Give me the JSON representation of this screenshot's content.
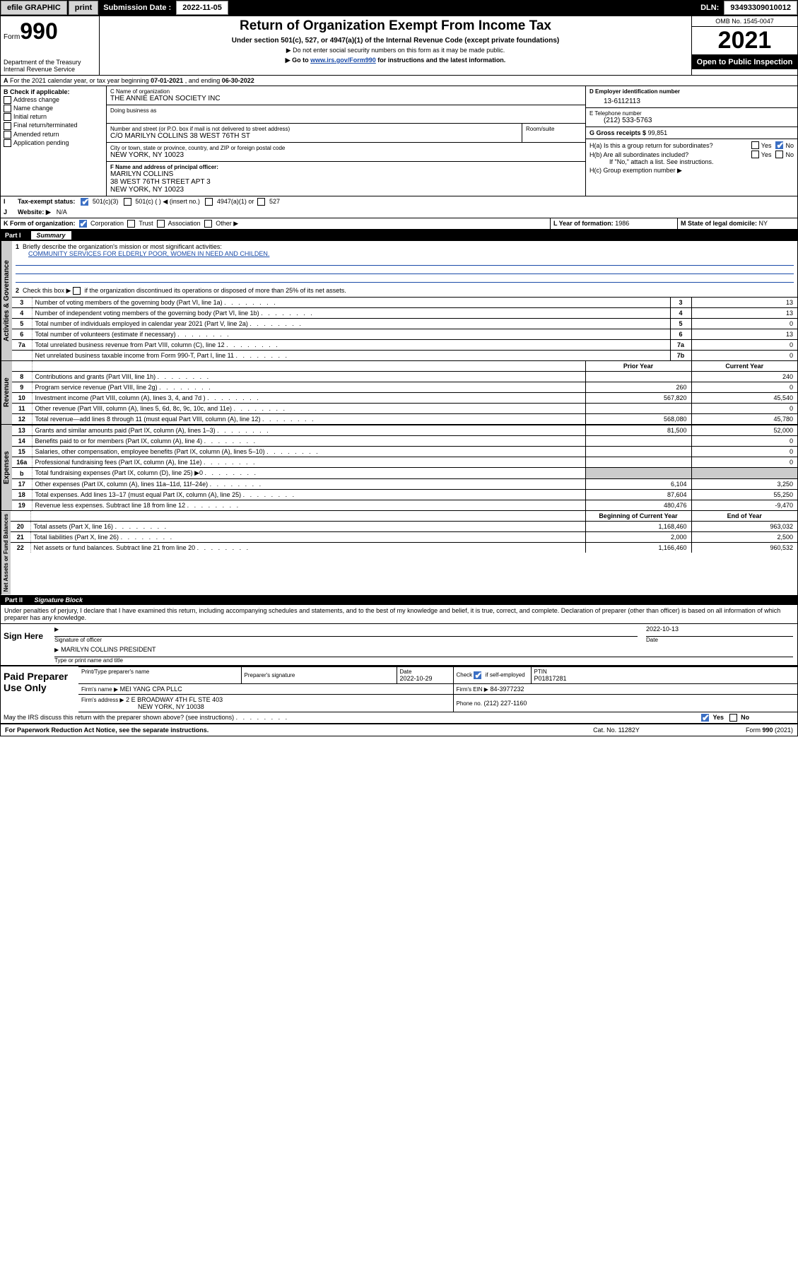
{
  "topbar": {
    "efile": "efile GRAPHIC",
    "print": "print",
    "sub_label": "Submission Date :",
    "sub_date": "2022-11-05",
    "dln_label": "DLN:",
    "dln": "93493309010012"
  },
  "header": {
    "form_word": "Form",
    "form_num": "990",
    "title": "Return of Organization Exempt From Income Tax",
    "sub1": "Under section 501(c), 527, or 4947(a)(1) of the Internal Revenue Code (except private foundations)",
    "sub2": "▶ Do not enter social security numbers on this form as it may be made public.",
    "sub3_pre": "▶ Go to ",
    "sub3_link": "www.irs.gov/Form990",
    "sub3_post": " for instructions and the latest information.",
    "dept": "Department of the Treasury\nInternal Revenue Service",
    "omb": "OMB No. 1545-0047",
    "year": "2021",
    "open": "Open to Public Inspection"
  },
  "lineA": {
    "text_pre": "For the 2021 calendar year, or tax year beginning ",
    "begin": "07-01-2021",
    "mid": " , and ending ",
    "end": "06-30-2022"
  },
  "B": {
    "hdr": "B Check if applicable:",
    "opts": [
      "Address change",
      "Name change",
      "Initial return",
      "Final return/terminated",
      "Amended return",
      "Application pending"
    ]
  },
  "C": {
    "lbl_name": "C Name of organization",
    "name": "THE ANNIE EATON SOCIETY INC",
    "dba_lbl": "Doing business as",
    "street_lbl": "Number and street (or P.O. box if mail is not delivered to street address)",
    "room_lbl": "Room/suite",
    "street": "C/O MARILYN COLLINS 38 WEST 76TH ST",
    "city_lbl": "City or town, state or province, country, and ZIP or foreign postal code",
    "city": "NEW YORK, NY  10023"
  },
  "D": {
    "lbl": "D Employer identification number",
    "val": "13-6112113"
  },
  "E": {
    "lbl": "E Telephone number",
    "val": "(212) 533-5763"
  },
  "G": {
    "lbl": "G Gross receipts $",
    "val": "99,851"
  },
  "F": {
    "lbl": "F Name and address of principal officer:",
    "line1": "MARILYN COLLINS",
    "line2": "38 WEST 76TH STREET APT 3",
    "line3": "NEW YORK, NY  10023"
  },
  "H": {
    "a": "H(a)  Is this a group return for subordinates?",
    "b": "H(b)  Are all subordinates included?",
    "b_note": "If \"No,\" attach a list. See instructions.",
    "c": "H(c)  Group exemption number ▶",
    "yes": "Yes",
    "no": "No"
  },
  "I": {
    "lbl": "Tax-exempt status:",
    "o1": "501(c)(3)",
    "o2": "501(c) (   ) ◀ (insert no.)",
    "o3": "4947(a)(1) or",
    "o4": "527"
  },
  "J": {
    "lbl": "Website: ▶",
    "val": "N/A"
  },
  "K": {
    "lbl": "K Form of organization:",
    "o1": "Corporation",
    "o2": "Trust",
    "o3": "Association",
    "o4": "Other ▶"
  },
  "L": {
    "lbl": "L Year of formation:",
    "val": "1986"
  },
  "M": {
    "lbl": "M State of legal domicile:",
    "val": "NY"
  },
  "part1": {
    "num": "Part I",
    "title": "Summary"
  },
  "side": {
    "gov": "Activities & Governance",
    "rev": "Revenue",
    "exp": "Expenses",
    "net": "Net Assets or Fund Balances"
  },
  "summary": {
    "l1": "Briefly describe the organization's mission or most significant activities:",
    "mission": "COMMUNITY SERVICES FOR ELDERLY POOR, WOMEN IN NEED AND CHILDEN.",
    "l2": "Check this box ▶        if the organization discontinued its operations or disposed of more than 25% of its net assets.",
    "rows_gov": [
      {
        "n": "3",
        "d": "Number of voting members of the governing body (Part VI, line 1a)",
        "box": "3",
        "v": "13"
      },
      {
        "n": "4",
        "d": "Number of independent voting members of the governing body (Part VI, line 1b)",
        "box": "4",
        "v": "13"
      },
      {
        "n": "5",
        "d": "Total number of individuals employed in calendar year 2021 (Part V, line 2a)",
        "box": "5",
        "v": "0"
      },
      {
        "n": "6",
        "d": "Total number of volunteers (estimate if necessary)",
        "box": "6",
        "v": "13"
      },
      {
        "n": "7a",
        "d": "Total unrelated business revenue from Part VIII, column (C), line 12",
        "box": "7a",
        "v": "0"
      },
      {
        "n": "",
        "d": "Net unrelated business taxable income from Form 990-T, Part I, line 11",
        "box": "7b",
        "v": "0"
      }
    ],
    "col_prior": "Prior Year",
    "col_curr": "Current Year",
    "rows_rev": [
      {
        "n": "8",
        "d": "Contributions and grants (Part VIII, line 1h)",
        "p": "",
        "c": "240"
      },
      {
        "n": "9",
        "d": "Program service revenue (Part VIII, line 2g)",
        "p": "260",
        "c": "0"
      },
      {
        "n": "10",
        "d": "Investment income (Part VIII, column (A), lines 3, 4, and 7d )",
        "p": "567,820",
        "c": "45,540"
      },
      {
        "n": "11",
        "d": "Other revenue (Part VIII, column (A), lines 5, 6d, 8c, 9c, 10c, and 11e)",
        "p": "",
        "c": "0"
      },
      {
        "n": "12",
        "d": "Total revenue—add lines 8 through 11 (must equal Part VIII, column (A), line 12)",
        "p": "568,080",
        "c": "45,780"
      }
    ],
    "rows_exp": [
      {
        "n": "13",
        "d": "Grants and similar amounts paid (Part IX, column (A), lines 1–3)",
        "p": "81,500",
        "c": "52,000"
      },
      {
        "n": "14",
        "d": "Benefits paid to or for members (Part IX, column (A), line 4)",
        "p": "",
        "c": "0"
      },
      {
        "n": "15",
        "d": "Salaries, other compensation, employee benefits (Part IX, column (A), lines 5–10)",
        "p": "",
        "c": "0"
      },
      {
        "n": "16a",
        "d": "Professional fundraising fees (Part IX, column (A), line 11e)",
        "p": "",
        "c": "0"
      },
      {
        "n": "b",
        "d": "Total fundraising expenses (Part IX, column (D), line 25) ▶0",
        "p": "SHADE",
        "c": "SHADE"
      },
      {
        "n": "17",
        "d": "Other expenses (Part IX, column (A), lines 11a–11d, 11f–24e)",
        "p": "6,104",
        "c": "3,250"
      },
      {
        "n": "18",
        "d": "Total expenses. Add lines 13–17 (must equal Part IX, column (A), line 25)",
        "p": "87,604",
        "c": "55,250"
      },
      {
        "n": "19",
        "d": "Revenue less expenses. Subtract line 18 from line 12",
        "p": "480,476",
        "c": "-9,470"
      }
    ],
    "col_beg": "Beginning of Current Year",
    "col_end": "End of Year",
    "rows_net": [
      {
        "n": "20",
        "d": "Total assets (Part X, line 16)",
        "p": "1,168,460",
        "c": "963,032"
      },
      {
        "n": "21",
        "d": "Total liabilities (Part X, line 26)",
        "p": "2,000",
        "c": "2,500"
      },
      {
        "n": "22",
        "d": "Net assets or fund balances. Subtract line 21 from line 20",
        "p": "1,166,460",
        "c": "960,532"
      }
    ]
  },
  "part2": {
    "num": "Part II",
    "title": "Signature Block"
  },
  "penalties": "Under penalties of perjury, I declare that I have examined this return, including accompanying schedules and statements, and to the best of my knowledge and belief, it is true, correct, and complete. Declaration of preparer (other than officer) is based on all information of which preparer has any knowledge.",
  "sign": {
    "here": "Sign Here",
    "sig_of_officer": "Signature of officer",
    "date_lbl": "Date",
    "date": "2022-10-13",
    "name": "MARILYN COLLINS  PRESIDENT",
    "name_lbl": "Type or print name and title"
  },
  "prep": {
    "title": "Paid Preparer Use Only",
    "h1": "Print/Type preparer's name",
    "h2": "Preparer's signature",
    "h3": "Date",
    "date": "2022-10-29",
    "h4": "Check         if self-employed",
    "h5": "PTIN",
    "ptin": "P01817281",
    "firm_name_lbl": "Firm's name      ▶",
    "firm_name": "MEI YANG CPA PLLC",
    "firm_ein_lbl": "Firm's EIN ▶",
    "firm_ein": "84-3977232",
    "firm_addr_lbl": "Firm's address ▶",
    "firm_addr1": "2 E BROADWAY 4TH FL STE 403",
    "firm_addr2": "NEW YORK, NY  10038",
    "phone_lbl": "Phone no.",
    "phone": "(212) 227-1160"
  },
  "discuss": {
    "q": "May the IRS discuss this return with the preparer shown above? (see instructions)",
    "yes": "Yes",
    "no": "No"
  },
  "footer": {
    "f1": "For Paperwork Reduction Act Notice, see the separate instructions.",
    "f2": "Cat. No. 11282Y",
    "f3": "Form 990 (2021)"
  }
}
